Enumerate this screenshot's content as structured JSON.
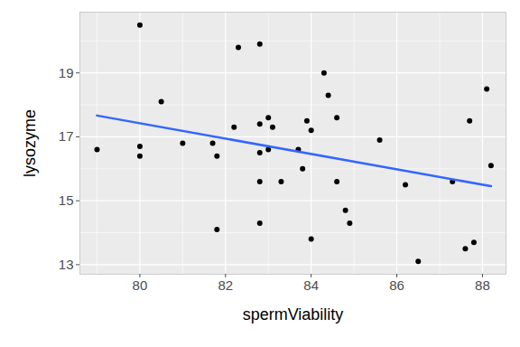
{
  "chart_data": {
    "type": "scatter",
    "x_label": "spermViability",
    "y_label": "lysozyme",
    "x": [
      79.0,
      80.0,
      80.0,
      80.0,
      80.5,
      81.0,
      81.7,
      81.8,
      81.8,
      82.2,
      82.3,
      82.8,
      82.8,
      82.8,
      82.8,
      82.8,
      83.0,
      83.0,
      83.1,
      83.3,
      83.7,
      83.8,
      83.9,
      84.0,
      84.0,
      84.3,
      84.4,
      84.6,
      84.6,
      84.8,
      84.9,
      85.6,
      86.2,
      86.5,
      87.3,
      87.6,
      87.7,
      87.8,
      88.1,
      88.2
    ],
    "series": [
      {
        "type": "scatter",
        "color": "#000000",
        "marker": "circle",
        "values": [
          16.6,
          20.5,
          16.7,
          16.4,
          18.1,
          16.8,
          16.8,
          16.4,
          14.1,
          17.3,
          19.8,
          19.9,
          17.4,
          16.5,
          15.6,
          14.3,
          17.6,
          16.6,
          17.3,
          15.6,
          16.6,
          16.0,
          17.5,
          17.2,
          13.8,
          19.0,
          18.3,
          17.6,
          15.6,
          14.7,
          14.3,
          16.9,
          15.5,
          13.1,
          15.6,
          13.5,
          17.5,
          13.7,
          18.5,
          16.1
        ]
      },
      {
        "type": "regression",
        "color": "#3366FF",
        "line_style": "solid"
      }
    ],
    "xlim": [
      78.6,
      88.55
    ],
    "xticks": [
      80,
      82,
      84,
      86,
      88
    ],
    "ylim": [
      12.7,
      20.9
    ],
    "yticks": [
      13,
      15,
      17,
      19
    ],
    "grid": true
  }
}
